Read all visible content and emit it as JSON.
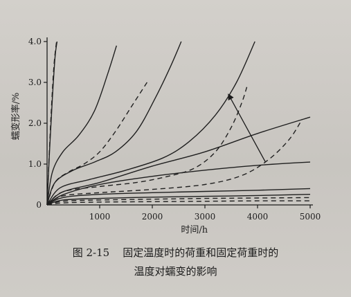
{
  "figure": {
    "caption_line1": "图 2-15    固定温度时的荷重和固定荷重时的",
    "caption_line2": "温度对蠕变的影响"
  },
  "chart_data": {
    "type": "line",
    "xlabel": "时间/h",
    "ylabel": "蠕变形率/%",
    "xlim": [
      0,
      5000
    ],
    "ylim": [
      0,
      4.0
    ],
    "x_ticks": [
      "1000",
      "2000",
      "3000",
      "4000",
      "5000"
    ],
    "y_ticks": [
      "1.0",
      "2.0",
      "3.0",
      "4.0"
    ],
    "origin_label": "0",
    "grid": false,
    "legend": "none",
    "annotation": "arrow pointing up-left (direction of increasing load / temperature)",
    "annotation_arrow": {
      "from": [
        4150,
        1.05
      ],
      "to": [
        3450,
        2.7
      ]
    },
    "series": [
      {
        "style": "solid",
        "points": [
          [
            0,
            0
          ],
          [
            50,
            1.4
          ],
          [
            100,
            2.6
          ],
          [
            150,
            3.6
          ],
          [
            190,
            4.0
          ]
        ]
      },
      {
        "style": "dashed",
        "points": [
          [
            0,
            0
          ],
          [
            40,
            1.2
          ],
          [
            80,
            2.3
          ],
          [
            130,
            3.4
          ],
          [
            180,
            4.0
          ]
        ]
      },
      {
        "style": "solid",
        "points": [
          [
            0,
            0
          ],
          [
            100,
            0.8
          ],
          [
            300,
            1.3
          ],
          [
            600,
            1.7
          ],
          [
            900,
            2.3
          ],
          [
            1150,
            3.2
          ],
          [
            1320,
            3.9
          ]
        ]
      },
      {
        "style": "dashed",
        "points": [
          [
            0,
            0
          ],
          [
            150,
            0.55
          ],
          [
            400,
            0.8
          ],
          [
            700,
            1.0
          ],
          [
            1000,
            1.3
          ],
          [
            1300,
            1.8
          ],
          [
            1600,
            2.4
          ],
          [
            1900,
            3.0
          ]
        ]
      },
      {
        "style": "solid",
        "points": [
          [
            0,
            0
          ],
          [
            150,
            0.55
          ],
          [
            500,
            0.85
          ],
          [
            900,
            1.05
          ],
          [
            1300,
            1.3
          ],
          [
            1700,
            1.8
          ],
          [
            2050,
            2.6
          ],
          [
            2350,
            3.4
          ],
          [
            2550,
            4.0
          ]
        ]
      },
      {
        "style": "solid",
        "points": [
          [
            0,
            0
          ],
          [
            250,
            0.42
          ],
          [
            800,
            0.62
          ],
          [
            1500,
            0.85
          ],
          [
            2200,
            1.15
          ],
          [
            2700,
            1.55
          ],
          [
            3200,
            2.2
          ],
          [
            3600,
            3.0
          ],
          [
            3950,
            4.0
          ]
        ]
      },
      {
        "style": "dashed",
        "points": [
          [
            0,
            0
          ],
          [
            300,
            0.32
          ],
          [
            1000,
            0.45
          ],
          [
            1700,
            0.55
          ],
          [
            2300,
            0.7
          ],
          [
            2800,
            0.9
          ],
          [
            3200,
            1.3
          ],
          [
            3500,
            1.9
          ],
          [
            3700,
            2.5
          ],
          [
            3800,
            2.9
          ]
        ]
      },
      {
        "style": "solid",
        "points": [
          [
            0,
            0
          ],
          [
            300,
            0.32
          ],
          [
            1000,
            0.55
          ],
          [
            2000,
            0.95
          ],
          [
            3000,
            1.3
          ],
          [
            4000,
            1.75
          ],
          [
            5000,
            2.15
          ]
        ]
      },
      {
        "style": "dashed",
        "points": [
          [
            0,
            0
          ],
          [
            300,
            0.22
          ],
          [
            1000,
            0.3
          ],
          [
            2000,
            0.38
          ],
          [
            3000,
            0.5
          ],
          [
            3700,
            0.72
          ],
          [
            4200,
            1.1
          ],
          [
            4600,
            1.6
          ],
          [
            4850,
            2.1
          ]
        ]
      },
      {
        "style": "solid",
        "points": [
          [
            0,
            0
          ],
          [
            300,
            0.25
          ],
          [
            1000,
            0.5
          ],
          [
            2000,
            0.7
          ],
          [
            3000,
            0.85
          ],
          [
            4000,
            0.97
          ],
          [
            5000,
            1.05
          ]
        ]
      },
      {
        "style": "solid",
        "points": [
          [
            0,
            0
          ],
          [
            300,
            0.18
          ],
          [
            1000,
            0.26
          ],
          [
            2000,
            0.3
          ],
          [
            3000,
            0.33
          ],
          [
            4000,
            0.36
          ],
          [
            5000,
            0.4
          ]
        ]
      },
      {
        "style": "solid",
        "points": [
          [
            0,
            0
          ],
          [
            300,
            0.12
          ],
          [
            1000,
            0.16
          ],
          [
            2000,
            0.19
          ],
          [
            3000,
            0.21
          ],
          [
            4000,
            0.23
          ],
          [
            5000,
            0.26
          ]
        ]
      },
      {
        "style": "dashed",
        "points": [
          [
            0,
            0
          ],
          [
            300,
            0.09
          ],
          [
            1000,
            0.12
          ],
          [
            2000,
            0.14
          ],
          [
            3000,
            0.16
          ],
          [
            4000,
            0.17
          ],
          [
            5000,
            0.18
          ]
        ]
      },
      {
        "style": "dashed",
        "points": [
          [
            0,
            0
          ],
          [
            300,
            0.05
          ],
          [
            1000,
            0.07
          ],
          [
            2000,
            0.08
          ],
          [
            3000,
            0.09
          ],
          [
            4000,
            0.1
          ],
          [
            5000,
            0.1
          ]
        ]
      }
    ]
  }
}
